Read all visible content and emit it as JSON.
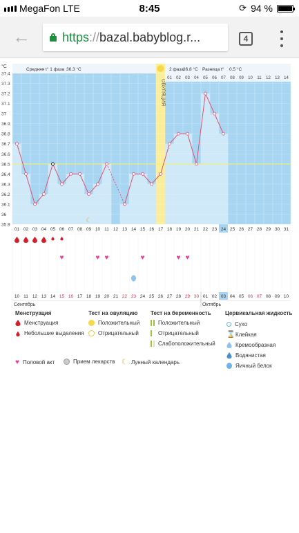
{
  "status_bar": {
    "carrier": "MegaFon",
    "network": "LTE",
    "time": "8:45",
    "battery_text": "94 %"
  },
  "browser": {
    "url_scheme": "https",
    "url_sep": "://",
    "url_host": "bazal.babyblog.r...",
    "tab_count": "4"
  },
  "chart_data": {
    "type": "line",
    "yunit": "°C",
    "ylim": [
      35.9,
      37.4
    ],
    "yticks": [
      "37.4",
      "37.3",
      "37.2",
      "37.1",
      "37",
      "36.9",
      "36.8",
      "36.7",
      "36.6",
      "36.5",
      "36.4",
      "36.3",
      "36.2",
      "36.1",
      "36",
      "35.9"
    ],
    "phase1_label": "Средняя t° 1 фаза",
    "phase1_value": "36.3 °C",
    "phase2_label": "2 фаза",
    "phase2_value": "36.8 °C",
    "diff_label": "Разница t°",
    "diff_value": "0.5 °C",
    "ovulation_label": "ОВУЛЯЦИЯ",
    "ovulation_day_index": 16,
    "coverline": 36.5,
    "cycle_days": [
      "01",
      "02",
      "03",
      "04",
      "05",
      "06",
      "07",
      "08",
      "09",
      "10",
      "11",
      "12",
      "13",
      "14",
      "15",
      "16",
      "17",
      "18",
      "19",
      "20",
      "21",
      "22",
      "23",
      "24",
      "25",
      "26",
      "27",
      "28",
      "29",
      "30",
      "31"
    ],
    "post_ov_days": [
      "01",
      "02",
      "03",
      "04",
      "05",
      "06",
      "07",
      "08",
      "09",
      "10",
      "11",
      "12",
      "13",
      "14"
    ],
    "current_day_index": 23,
    "temperatures": [
      36.7,
      36.4,
      36.1,
      36.2,
      36.5,
      36.3,
      36.4,
      36.4,
      36.2,
      36.3,
      36.5,
      null,
      36.1,
      36.4,
      36.4,
      36.3,
      36.4,
      36.7,
      36.8,
      36.8,
      36.5,
      37.2,
      37.0,
      36.8
    ],
    "dates": [
      "10",
      "11",
      "12",
      "13",
      "14",
      "15",
      "16",
      "17",
      "18",
      "19",
      "20",
      "21",
      "22",
      "23",
      "24",
      "25",
      "26",
      "27",
      "28",
      "29",
      "30",
      "01",
      "02",
      "03",
      "04",
      "05",
      "06",
      "07",
      "08",
      "09",
      "10"
    ],
    "weekend_indices": [
      5,
      6,
      12,
      13,
      19,
      20,
      26,
      27
    ],
    "current_date_index": 23,
    "month1": "Сентябрь",
    "month2": "Октябрь",
    "menstruation_days": [
      0,
      1,
      2,
      3,
      4,
      5
    ],
    "menstruation_small_days": [
      4,
      5
    ],
    "intercourse_days": [
      5,
      9,
      10,
      14,
      18,
      19
    ],
    "moon_day": 8,
    "fluid_day": 13
  },
  "legend": {
    "menstruation_title": "Менструация",
    "menstruation": "Менструация",
    "spotting": "Небольшие выделения",
    "ovulation_test_title": "Тест на овуляцию",
    "positive": "Положительный",
    "negative": "Отрицательный",
    "pregnancy_test_title": "Тест на беременность",
    "preg_positive": "Положительный",
    "preg_negative": "Отрицательный",
    "preg_weak": "Слабоположительный",
    "cervical_title": "Цервикальная жидкость",
    "dry": "Сухо",
    "sticky": "Клейкая",
    "creamy": "Кремообразная",
    "watery": "Водянистая",
    "eggwhite": "Яичный белок",
    "intercourse": "Половой акт",
    "medicine": "Прием лекарств",
    "lunar": "Лунный календарь"
  },
  "colors": {
    "bar_fill": "#cfe9f8",
    "sky": "#a8d6f2",
    "ovulation": "#fbee9b",
    "temp_line": "#e05070",
    "heart": "#e8409a",
    "blood": "#d61e2a",
    "weekend": "#d9304a",
    "coverline": "#f4f06a"
  }
}
